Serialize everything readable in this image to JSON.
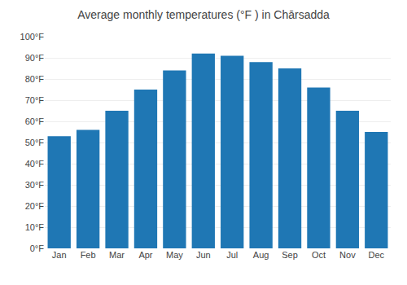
{
  "chart_data": {
    "type": "bar",
    "title": "Average monthly temperatures (°F ) in Chārsadda",
    "categories": [
      "Jan",
      "Feb",
      "Mar",
      "Apr",
      "May",
      "Jun",
      "Jul",
      "Aug",
      "Sep",
      "Oct",
      "Nov",
      "Dec"
    ],
    "values": [
      53,
      56,
      65,
      75,
      84,
      92,
      91,
      88,
      85,
      76,
      65,
      55
    ],
    "ylim": [
      0,
      100
    ],
    "yticks": [
      {
        "value": 0,
        "label": "0°F"
      },
      {
        "value": 10,
        "label": "10°F"
      },
      {
        "value": 20,
        "label": "20°F"
      },
      {
        "value": 30,
        "label": "30°F"
      },
      {
        "value": 40,
        "label": "40°F"
      },
      {
        "value": 50,
        "label": "50°F"
      },
      {
        "value": 60,
        "label": "60°F"
      },
      {
        "value": 70,
        "label": "70°F"
      },
      {
        "value": 80,
        "label": "80°F"
      },
      {
        "value": 90,
        "label": "90°F"
      },
      {
        "value": 100,
        "label": "100°F"
      }
    ],
    "grid": true
  }
}
